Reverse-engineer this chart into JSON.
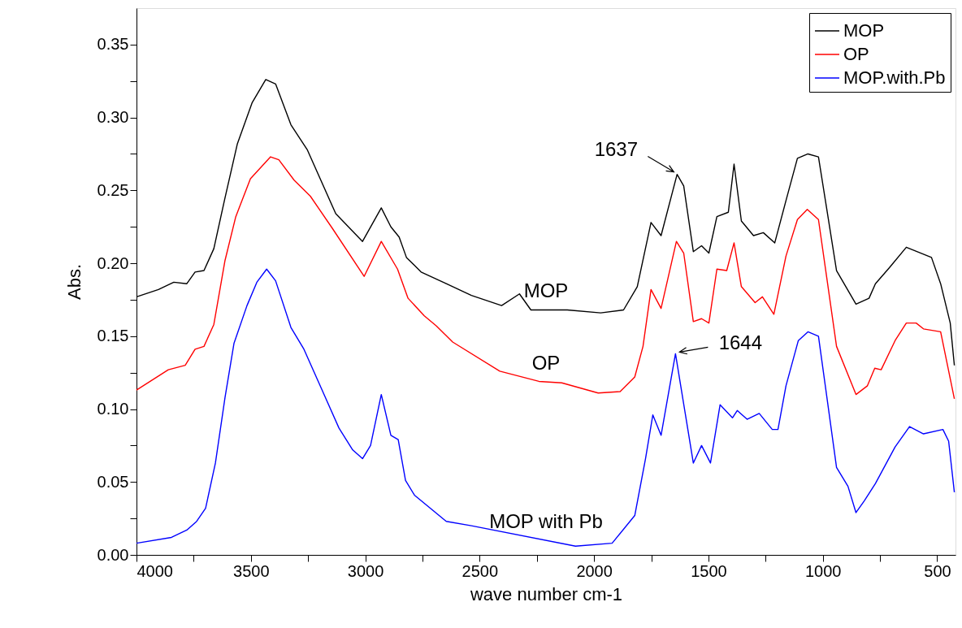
{
  "chart_data": {
    "type": "line",
    "xlabel": "wave number cm-1",
    "ylabel": "Abs.",
    "xlim": [
      4000,
      420
    ],
    "ylim": [
      0,
      0.375
    ],
    "xticks": [
      4000,
      {
        "value": 3750,
        "label": null
      },
      3500,
      {
        "value": 3250,
        "label": null
      },
      3000,
      {
        "value": 2750,
        "label": null
      },
      2500,
      {
        "value": 2250,
        "label": null
      },
      2000,
      {
        "value": 1750,
        "label": null
      },
      1500,
      {
        "value": 1250,
        "label": null
      },
      1000,
      {
        "value": 750,
        "label": null
      },
      500
    ],
    "yticks": [
      {
        "value": 0,
        "label": "0.00"
      },
      {
        "value": 0.025,
        "label": null
      },
      0.05,
      {
        "value": 0.075,
        "label": null
      },
      {
        "value": 0.1,
        "label": "0.10"
      },
      {
        "value": 0.125,
        "label": null
      },
      0.15,
      {
        "value": 0.175,
        "label": null
      },
      {
        "value": 0.2,
        "label": "0.20"
      },
      {
        "value": 0.225,
        "label": null
      },
      0.25,
      {
        "value": 0.275,
        "label": null
      },
      {
        "value": 0.3,
        "label": "0.30"
      },
      {
        "value": 0.325,
        "label": null
      },
      0.35
    ],
    "legend": "top right",
    "grid": false,
    "series": [
      {
        "name": "MOP",
        "color": "#000000",
        "x": [
          4000,
          3904,
          3837,
          3780,
          3744,
          3705,
          3662,
          3613,
          3559,
          3495,
          3435,
          3392,
          3325,
          3254,
          3129,
          3012,
          2930,
          2888,
          2852,
          2820,
          2756,
          2646,
          2536,
          2404,
          2326,
          2276,
          2117,
          1971,
          1871,
          1811,
          1751,
          1707,
          1637,
          1608,
          1566,
          1530,
          1498,
          1463,
          1413,
          1388,
          1356,
          1303,
          1260,
          1210,
          1161,
          1111,
          1065,
          1019,
          940,
          855,
          798,
          770,
          709,
          635,
          525,
          485,
          443,
          425
        ],
        "values": [
          0.177,
          0.182,
          0.187,
          0.186,
          0.194,
          0.195,
          0.21,
          0.245,
          0.282,
          0.31,
          0.326,
          0.323,
          0.295,
          0.278,
          0.234,
          0.215,
          0.238,
          0.225,
          0.218,
          0.204,
          0.194,
          0.186,
          0.178,
          0.171,
          0.179,
          0.168,
          0.168,
          0.166,
          0.168,
          0.184,
          0.228,
          0.219,
          0.261,
          0.253,
          0.208,
          0.212,
          0.207,
          0.232,
          0.235,
          0.268,
          0.229,
          0.219,
          0.221,
          0.214,
          0.243,
          0.272,
          0.275,
          0.273,
          0.195,
          0.172,
          0.176,
          0.186,
          0.197,
          0.211,
          0.204,
          0.186,
          0.159,
          0.13
        ]
      },
      {
        "name": "OP",
        "color": "#ff0000",
        "x": [
          4000,
          3861,
          3787,
          3744,
          3705,
          3662,
          3613,
          3566,
          3502,
          3414,
          3378,
          3311,
          3240,
          3144,
          3005,
          2930,
          2859,
          2813,
          2742,
          2689,
          2618,
          2412,
          2241,
          2141,
          1982,
          1886,
          1822,
          1786,
          1751,
          1707,
          1640,
          1608,
          1566,
          1530,
          1498,
          1463,
          1420,
          1388,
          1356,
          1296,
          1264,
          1214,
          1161,
          1111,
          1068,
          1019,
          940,
          855,
          805,
          773,
          745,
          684,
          635,
          592,
          560,
          485,
          425
        ],
        "values": [
          0.113,
          0.127,
          0.13,
          0.141,
          0.143,
          0.158,
          0.202,
          0.232,
          0.258,
          0.273,
          0.271,
          0.257,
          0.246,
          0.224,
          0.191,
          0.215,
          0.196,
          0.176,
          0.164,
          0.157,
          0.146,
          0.126,
          0.119,
          0.118,
          0.111,
          0.112,
          0.122,
          0.143,
          0.182,
          0.169,
          0.215,
          0.207,
          0.16,
          0.162,
          0.159,
          0.196,
          0.195,
          0.214,
          0.184,
          0.173,
          0.177,
          0.165,
          0.205,
          0.23,
          0.237,
          0.23,
          0.143,
          0.11,
          0.116,
          0.128,
          0.127,
          0.147,
          0.159,
          0.159,
          0.155,
          0.153,
          0.107
        ]
      },
      {
        "name": "MOP.with.Pb",
        "color": "#0000ff",
        "x": [
          4000,
          3847,
          3780,
          3737,
          3698,
          3655,
          3613,
          3574,
          3517,
          3474,
          3431,
          3392,
          3325,
          3268,
          3200,
          3115,
          3055,
          3012,
          2977,
          2930,
          2888,
          2856,
          2824,
          2785,
          2646,
          2536,
          2081,
          1921,
          1822,
          1775,
          1743,
          1707,
          1644,
          1566,
          1530,
          1491,
          1449,
          1395,
          1374,
          1331,
          1278,
          1221,
          1196,
          1161,
          1107,
          1065,
          1019,
          940,
          890,
          855,
          819,
          770,
          684,
          621,
          560,
          475,
          450,
          425
        ],
        "values": [
          0.008,
          0.012,
          0.017,
          0.023,
          0.032,
          0.063,
          0.108,
          0.145,
          0.171,
          0.187,
          0.196,
          0.188,
          0.156,
          0.141,
          0.117,
          0.087,
          0.072,
          0.066,
          0.075,
          0.11,
          0.082,
          0.079,
          0.051,
          0.041,
          0.023,
          0.02,
          0.006,
          0.008,
          0.027,
          0.066,
          0.096,
          0.082,
          0.138,
          0.063,
          0.075,
          0.063,
          0.103,
          0.094,
          0.099,
          0.093,
          0.097,
          0.086,
          0.086,
          0.116,
          0.147,
          0.153,
          0.15,
          0.06,
          0.047,
          0.029,
          0.037,
          0.049,
          0.074,
          0.088,
          0.083,
          0.086,
          0.078,
          0.043
        ]
      }
    ],
    "annotations": [
      {
        "text": "1637",
        "x": 1637,
        "y": 0.261
      },
      {
        "text": "1644",
        "x": 1644,
        "y": 0.138
      },
      "MOP",
      "OP",
      "MOP with Pb"
    ]
  }
}
